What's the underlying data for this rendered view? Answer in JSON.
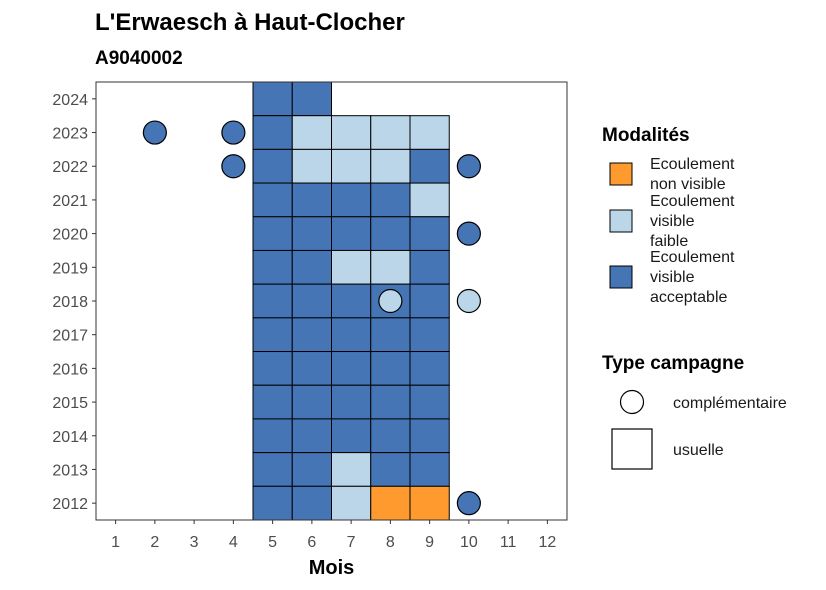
{
  "title": "L'Erwaesch à Haut-Clocher",
  "subtitle": "A9040002",
  "chart_data": {
    "type": "heatmap",
    "title": "L'Erwaesch à Haut-Clocher",
    "subtitle": "A9040002",
    "xlabel": "Mois",
    "ylabel": "",
    "x_ticks": [
      "1",
      "2",
      "3",
      "4",
      "5",
      "6",
      "7",
      "8",
      "9",
      "10",
      "11",
      "12"
    ],
    "y_ticks": [
      "2012",
      "2013",
      "2014",
      "2015",
      "2016",
      "2017",
      "2018",
      "2019",
      "2020",
      "2021",
      "2022",
      "2023",
      "2024"
    ],
    "xlim": [
      0.5,
      12.5
    ],
    "ylim": [
      2011.5,
      2024.5
    ],
    "grid": false,
    "legend_position": "right",
    "colors": {
      "Ecoulement non visible": "#FE9A2E",
      "Ecoulement visible faible": "#BBD6E8",
      "Ecoulement visible acceptable": "#4575B4"
    },
    "legends": [
      {
        "title": "Modalités",
        "items": [
          {
            "line1": "Ecoulement",
            "line2": "non visible",
            "line3": "",
            "category": "Ecoulement non visible",
            "color": "#FE9A2E"
          },
          {
            "line1": "Ecoulement",
            "line2": "visible",
            "line3": "faible",
            "category": "Ecoulement visible faible",
            "color": "#BBD6E8"
          },
          {
            "line1": "Ecoulement",
            "line2": "visible",
            "line3": "acceptable",
            "category": "Ecoulement visible acceptable",
            "color": "#4575B4"
          }
        ]
      },
      {
        "title": "Type campagne",
        "items": [
          {
            "label": "complémentaire",
            "shape": "circle"
          },
          {
            "label": "usuelle",
            "shape": "square"
          }
        ]
      }
    ],
    "usuelle": [
      {
        "year": 2024,
        "month": 5,
        "category": "Ecoulement visible acceptable"
      },
      {
        "year": 2024,
        "month": 6,
        "category": "Ecoulement visible acceptable"
      },
      {
        "year": 2023,
        "month": 5,
        "category": "Ecoulement visible acceptable"
      },
      {
        "year": 2023,
        "month": 6,
        "category": "Ecoulement visible faible"
      },
      {
        "year": 2023,
        "month": 7,
        "category": "Ecoulement visible faible"
      },
      {
        "year": 2023,
        "month": 8,
        "category": "Ecoulement visible faible"
      },
      {
        "year": 2023,
        "month": 9,
        "category": "Ecoulement visible faible"
      },
      {
        "year": 2022,
        "month": 5,
        "category": "Ecoulement visible acceptable"
      },
      {
        "year": 2022,
        "month": 6,
        "category": "Ecoulement visible faible"
      },
      {
        "year": 2022,
        "month": 7,
        "category": "Ecoulement visible faible"
      },
      {
        "year": 2022,
        "month": 8,
        "category": "Ecoulement visible faible"
      },
      {
        "year": 2022,
        "month": 9,
        "category": "Ecoulement visible acceptable"
      },
      {
        "year": 2021,
        "month": 5,
        "category": "Ecoulement visible acceptable"
      },
      {
        "year": 2021,
        "month": 6,
        "category": "Ecoulement visible acceptable"
      },
      {
        "year": 2021,
        "month": 7,
        "category": "Ecoulement visible acceptable"
      },
      {
        "year": 2021,
        "month": 8,
        "category": "Ecoulement visible acceptable"
      },
      {
        "year": 2021,
        "month": 9,
        "category": "Ecoulement visible faible"
      },
      {
        "year": 2020,
        "month": 5,
        "category": "Ecoulement visible acceptable"
      },
      {
        "year": 2020,
        "month": 6,
        "category": "Ecoulement visible acceptable"
      },
      {
        "year": 2020,
        "month": 7,
        "category": "Ecoulement visible acceptable"
      },
      {
        "year": 2020,
        "month": 8,
        "category": "Ecoulement visible acceptable"
      },
      {
        "year": 2020,
        "month": 9,
        "category": "Ecoulement visible acceptable"
      },
      {
        "year": 2019,
        "month": 5,
        "category": "Ecoulement visible acceptable"
      },
      {
        "year": 2019,
        "month": 6,
        "category": "Ecoulement visible acceptable"
      },
      {
        "year": 2019,
        "month": 7,
        "category": "Ecoulement visible faible"
      },
      {
        "year": 2019,
        "month": 8,
        "category": "Ecoulement visible faible"
      },
      {
        "year": 2019,
        "month": 9,
        "category": "Ecoulement visible acceptable"
      },
      {
        "year": 2018,
        "month": 5,
        "category": "Ecoulement visible acceptable"
      },
      {
        "year": 2018,
        "month": 6,
        "category": "Ecoulement visible acceptable"
      },
      {
        "year": 2018,
        "month": 7,
        "category": "Ecoulement visible acceptable"
      },
      {
        "year": 2018,
        "month": 8,
        "category": "Ecoulement visible acceptable"
      },
      {
        "year": 2018,
        "month": 9,
        "category": "Ecoulement visible acceptable"
      },
      {
        "year": 2017,
        "month": 5,
        "category": "Ecoulement visible acceptable"
      },
      {
        "year": 2017,
        "month": 6,
        "category": "Ecoulement visible acceptable"
      },
      {
        "year": 2017,
        "month": 7,
        "category": "Ecoulement visible acceptable"
      },
      {
        "year": 2017,
        "month": 8,
        "category": "Ecoulement visible acceptable"
      },
      {
        "year": 2017,
        "month": 9,
        "category": "Ecoulement visible acceptable"
      },
      {
        "year": 2016,
        "month": 5,
        "category": "Ecoulement visible acceptable"
      },
      {
        "year": 2016,
        "month": 6,
        "category": "Ecoulement visible acceptable"
      },
      {
        "year": 2016,
        "month": 7,
        "category": "Ecoulement visible acceptable"
      },
      {
        "year": 2016,
        "month": 8,
        "category": "Ecoulement visible acceptable"
      },
      {
        "year": 2016,
        "month": 9,
        "category": "Ecoulement visible acceptable"
      },
      {
        "year": 2015,
        "month": 5,
        "category": "Ecoulement visible acceptable"
      },
      {
        "year": 2015,
        "month": 6,
        "category": "Ecoulement visible acceptable"
      },
      {
        "year": 2015,
        "month": 7,
        "category": "Ecoulement visible acceptable"
      },
      {
        "year": 2015,
        "month": 8,
        "category": "Ecoulement visible acceptable"
      },
      {
        "year": 2015,
        "month": 9,
        "category": "Ecoulement visible acceptable"
      },
      {
        "year": 2014,
        "month": 5,
        "category": "Ecoulement visible acceptable"
      },
      {
        "year": 2014,
        "month": 6,
        "category": "Ecoulement visible acceptable"
      },
      {
        "year": 2014,
        "month": 7,
        "category": "Ecoulement visible acceptable"
      },
      {
        "year": 2014,
        "month": 8,
        "category": "Ecoulement visible acceptable"
      },
      {
        "year": 2014,
        "month": 9,
        "category": "Ecoulement visible acceptable"
      },
      {
        "year": 2013,
        "month": 5,
        "category": "Ecoulement visible acceptable"
      },
      {
        "year": 2013,
        "month": 6,
        "category": "Ecoulement visible acceptable"
      },
      {
        "year": 2013,
        "month": 7,
        "category": "Ecoulement visible faible"
      },
      {
        "year": 2013,
        "month": 8,
        "category": "Ecoulement visible acceptable"
      },
      {
        "year": 2013,
        "month": 9,
        "category": "Ecoulement visible acceptable"
      },
      {
        "year": 2012,
        "month": 5,
        "category": "Ecoulement visible acceptable"
      },
      {
        "year": 2012,
        "month": 6,
        "category": "Ecoulement visible acceptable"
      },
      {
        "year": 2012,
        "month": 7,
        "category": "Ecoulement visible faible"
      },
      {
        "year": 2012,
        "month": 8,
        "category": "Ecoulement non visible"
      },
      {
        "year": 2012,
        "month": 9,
        "category": "Ecoulement non visible"
      }
    ],
    "complementaire": [
      {
        "year": 2023,
        "month": 2,
        "category": "Ecoulement visible acceptable"
      },
      {
        "year": 2023,
        "month": 4,
        "category": "Ecoulement visible acceptable"
      },
      {
        "year": 2022,
        "month": 4,
        "category": "Ecoulement visible acceptable"
      },
      {
        "year": 2022,
        "month": 10,
        "category": "Ecoulement visible acceptable"
      },
      {
        "year": 2020,
        "month": 10,
        "category": "Ecoulement visible acceptable"
      },
      {
        "year": 2018,
        "month": 8,
        "category": "Ecoulement visible faible"
      },
      {
        "year": 2018,
        "month": 10,
        "category": "Ecoulement visible faible"
      },
      {
        "year": 2012,
        "month": 10,
        "category": "Ecoulement visible acceptable"
      }
    ]
  }
}
